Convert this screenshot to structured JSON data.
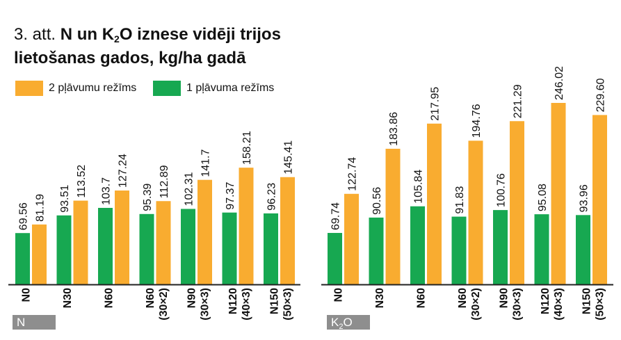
{
  "title": {
    "prefix": "3. att.",
    "bold_part1": "N un K",
    "bold_sub": "2",
    "bold_part2": "O iznese vidēji trijos",
    "line2": "lietošanas gados, kg/ha gadā"
  },
  "colors": {
    "orange": "#F9AC30",
    "green": "#17A851",
    "group_tag": "#8E8E8E",
    "axis": "#222222"
  },
  "chart_data": {
    "type": "bar",
    "legend": [
      {
        "name": "2 pļāvumu režīms",
        "color": "#F9AC30"
      },
      {
        "name": "1 pļāvuma režīms",
        "color": "#17A851"
      }
    ],
    "groups": [
      {
        "label": "N",
        "categories": [
          "N0",
          "N30",
          "N60",
          "N60\n(30×2)",
          "N90\n(30×3)",
          "N120\n(40×3)",
          "N150\n(50×3)"
        ],
        "series": [
          {
            "name": "1 pļāvuma režīms",
            "values": [
              69.56,
              93.51,
              103.7,
              95.39,
              102.31,
              97.37,
              96.23
            ],
            "labels": [
              "69.56",
              "93.51",
              "103.7",
              "95.39",
              "102.31",
              "97.37",
              "96.23"
            ]
          },
          {
            "name": "2 pļāvumu režīms",
            "values": [
              81.19,
              113.52,
              127.24,
              112.89,
              141.7,
              158.21,
              145.41
            ],
            "labels": [
              "81.19",
              "113.52",
              "127.24",
              "112.89",
              "141.7",
              "158.21",
              "145.41"
            ]
          }
        ]
      },
      {
        "label": "K2O",
        "categories": [
          "N0",
          "N30",
          "N60",
          "N60\n(30×2)",
          "N90\n(30×3)",
          "N120\n(40×3)",
          "N150\n(50×3)"
        ],
        "series": [
          {
            "name": "1 pļāvuma režīms",
            "values": [
              69.74,
              90.56,
              105.84,
              91.83,
              100.76,
              95.08,
              93.96
            ],
            "labels": [
              "69.74",
              "90.56",
              "105.84",
              "91.83",
              "100.76",
              "95.08",
              "93.96"
            ]
          },
          {
            "name": "2 pļāvumu režīms",
            "values": [
              122.74,
              183.86,
              217.95,
              194.76,
              221.29,
              246.02,
              229.6
            ],
            "labels": [
              "122.74",
              "183.86",
              "217.95",
              "194.76",
              "221.29",
              "246.02",
              "229.60"
            ]
          }
        ]
      }
    ],
    "ylim": [
      0,
      246.02
    ],
    "grid": false
  }
}
